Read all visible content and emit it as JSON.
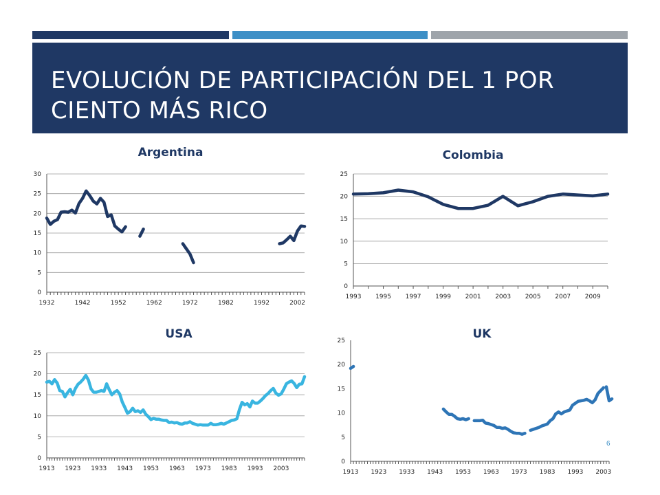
{
  "slide": {
    "title": "EVOLUCIÓN DE PARTICIPACIÓN DEL 1 POR CIENTO MÁS RICO",
    "page_number": "6",
    "colors": {
      "title_bg": "#1f3864",
      "bar1": "#1f3864",
      "bar2": "#3d8fc6",
      "bar3": "#9ea4aa"
    }
  },
  "chart_data": [
    {
      "id": "argentina",
      "type": "line",
      "title": "Argentina",
      "color": "#1f3864",
      "xlim": [
        1932,
        2004
      ],
      "ylim": [
        0,
        30
      ],
      "yticks": [
        0,
        5,
        10,
        15,
        20,
        25,
        30
      ],
      "xtick_labels": [
        "1932",
        "1942",
        "1952",
        "1962",
        "1972",
        "1982",
        "1992",
        "2002"
      ],
      "xtick_values": [
        1932,
        1942,
        1952,
        1962,
        1972,
        1982,
        1992,
        2002
      ],
      "grid": true,
      "segments": [
        [
          [
            1932,
            18.8
          ],
          [
            1933,
            17.2
          ],
          [
            1934,
            18
          ],
          [
            1935,
            18.4
          ],
          [
            1936,
            20.3
          ],
          [
            1937,
            20.4
          ],
          [
            1938,
            20.3
          ],
          [
            1939,
            20.8
          ],
          [
            1940,
            20.1
          ],
          [
            1941,
            22.5
          ],
          [
            1942,
            23.8
          ],
          [
            1943,
            25.7
          ],
          [
            1944,
            24.5
          ],
          [
            1945,
            23.1
          ],
          [
            1946,
            22.4
          ],
          [
            1947,
            23.8
          ],
          [
            1948,
            22.8
          ],
          [
            1949,
            19.2
          ],
          [
            1950,
            19.6
          ],
          [
            1951,
            16.8
          ],
          [
            1952,
            16
          ],
          [
            1953,
            15.3
          ],
          [
            1954,
            16.6
          ]
        ],
        [
          [
            1958,
            14.2
          ],
          [
            1959,
            16
          ]
        ],
        [
          [
            1970,
            12.3
          ],
          [
            1971,
            11
          ],
          [
            1972,
            9.7
          ],
          [
            1973,
            7.5
          ]
        ],
        [
          [
            1997,
            12.3
          ],
          [
            1998,
            12.5
          ],
          [
            1999,
            13.3
          ],
          [
            2000,
            14.2
          ],
          [
            2001,
            13.1
          ],
          [
            2002,
            15.5
          ],
          [
            2003,
            16.8
          ],
          [
            2004,
            16.7
          ]
        ]
      ]
    },
    {
      "id": "colombia",
      "type": "line",
      "title": "Colombia",
      "color": "#1f3864",
      "xlim": [
        1993,
        2010
      ],
      "ylim": [
        0,
        25
      ],
      "yticks": [
        0,
        5,
        10,
        15,
        20,
        25
      ],
      "xtick_labels": [
        "1993",
        "1995",
        "1997",
        "1999",
        "2001",
        "2003",
        "2005",
        "2007",
        "2009"
      ],
      "xtick_values": [
        1993,
        1995,
        1997,
        1999,
        2001,
        2003,
        2005,
        2007,
        2009
      ],
      "grid": true,
      "segments": [
        [
          [
            1993,
            20.5
          ],
          [
            1994,
            20.6
          ],
          [
            1995,
            20.8
          ],
          [
            1996,
            21.4
          ],
          [
            1997,
            21
          ],
          [
            1998,
            19.9
          ],
          [
            1999,
            18.2
          ],
          [
            2000,
            17.3
          ],
          [
            2001,
            17.3
          ],
          [
            2002,
            18
          ],
          [
            2003,
            20
          ],
          [
            2004,
            17.9
          ],
          [
            2005,
            18.8
          ],
          [
            2006,
            20
          ],
          [
            2007,
            20.5
          ],
          [
            2008,
            20.3
          ],
          [
            2009,
            20.1
          ],
          [
            2010,
            20.5
          ]
        ]
      ]
    },
    {
      "id": "usa",
      "type": "line",
      "title": "USA",
      "color": "#39b5e0",
      "xlim": [
        1913,
        2012
      ],
      "ylim": [
        0,
        25
      ],
      "yticks": [
        0,
        5,
        10,
        15,
        20,
        25
      ],
      "xtick_labels": [
        "1913",
        "1923",
        "1933",
        "1943",
        "1953",
        "1963",
        "1973",
        "1983",
        "1993",
        "2003"
      ],
      "xtick_values": [
        1913,
        1923,
        1933,
        1943,
        1953,
        1963,
        1973,
        1983,
        1993,
        2003
      ],
      "grid": true,
      "segments": [
        [
          [
            1913,
            18
          ],
          [
            1914,
            18.2
          ],
          [
            1915,
            17.6
          ],
          [
            1916,
            18.6
          ],
          [
            1917,
            17.8
          ],
          [
            1918,
            16
          ],
          [
            1919,
            15.8
          ],
          [
            1920,
            14.5
          ],
          [
            1921,
            15.5
          ],
          [
            1922,
            16.3
          ],
          [
            1923,
            15
          ],
          [
            1924,
            16.5
          ],
          [
            1925,
            17.5
          ],
          [
            1926,
            18
          ],
          [
            1927,
            18.7
          ],
          [
            1928,
            19.6
          ],
          [
            1929,
            18.5
          ],
          [
            1930,
            16.4
          ],
          [
            1931,
            15.6
          ],
          [
            1932,
            15.6
          ],
          [
            1933,
            15.8
          ],
          [
            1934,
            16
          ],
          [
            1935,
            15.8
          ],
          [
            1936,
            17.6
          ],
          [
            1937,
            16.2
          ],
          [
            1938,
            15
          ],
          [
            1939,
            15.6
          ],
          [
            1940,
            16
          ],
          [
            1941,
            15.2
          ],
          [
            1942,
            13.3
          ],
          [
            1943,
            12
          ],
          [
            1944,
            10.6
          ],
          [
            1945,
            11
          ],
          [
            1946,
            11.8
          ],
          [
            1947,
            11
          ],
          [
            1948,
            11.2
          ],
          [
            1949,
            10.8
          ],
          [
            1950,
            11.4
          ],
          [
            1951,
            10.4
          ],
          [
            1952,
            9.8
          ],
          [
            1953,
            9.1
          ],
          [
            1954,
            9.4
          ],
          [
            1955,
            9.2
          ],
          [
            1956,
            9.2
          ],
          [
            1957,
            9
          ],
          [
            1958,
            8.9
          ],
          [
            1959,
            8.9
          ],
          [
            1960,
            8.4
          ],
          [
            1961,
            8.5
          ],
          [
            1962,
            8.3
          ],
          [
            1963,
            8.4
          ],
          [
            1964,
            8.1
          ],
          [
            1965,
            8.0
          ],
          [
            1966,
            8.3
          ],
          [
            1967,
            8.3
          ],
          [
            1968,
            8.6
          ],
          [
            1969,
            8.2
          ],
          [
            1970,
            8
          ],
          [
            1971,
            7.8
          ],
          [
            1972,
            7.9
          ],
          [
            1973,
            7.8
          ],
          [
            1974,
            7.8
          ],
          [
            1975,
            7.8
          ],
          [
            1976,
            8.2
          ],
          [
            1977,
            7.9
          ],
          [
            1978,
            7.9
          ],
          [
            1979,
            8
          ],
          [
            1980,
            8.2
          ],
          [
            1981,
            8
          ],
          [
            1982,
            8.3
          ],
          [
            1983,
            8.6
          ],
          [
            1984,
            8.9
          ],
          [
            1985,
            9
          ],
          [
            1986,
            9.3
          ],
          [
            1987,
            11.5
          ],
          [
            1988,
            13.2
          ],
          [
            1989,
            12.6
          ],
          [
            1990,
            12.9
          ],
          [
            1991,
            12.1
          ],
          [
            1992,
            13.5
          ],
          [
            1993,
            13
          ],
          [
            1994,
            13
          ],
          [
            1995,
            13.5
          ],
          [
            1996,
            14.1
          ],
          [
            1997,
            14.8
          ],
          [
            1998,
            15.3
          ],
          [
            1999,
            16
          ],
          [
            2000,
            16.5
          ],
          [
            2001,
            15.4
          ],
          [
            2002,
            14.9
          ],
          [
            2003,
            15.2
          ],
          [
            2004,
            16.3
          ],
          [
            2005,
            17.6
          ],
          [
            2006,
            18
          ],
          [
            2007,
            18.3
          ],
          [
            2008,
            17.7
          ],
          [
            2009,
            16.7
          ],
          [
            2010,
            17.5
          ],
          [
            2011,
            17.6
          ],
          [
            2012,
            19.3
          ]
        ]
      ]
    },
    {
      "id": "uk",
      "type": "line",
      "title": "UK",
      "color": "#2e75b6",
      "xlim": [
        1913,
        2005
      ],
      "ylim": [
        0,
        25
      ],
      "yticks": [
        0,
        5,
        10,
        15,
        20,
        25
      ],
      "xtick_labels": [
        "1913",
        "1923",
        "1933",
        "1943",
        "1953",
        "1963",
        "1973",
        "1983",
        "1993",
        "2003"
      ],
      "xtick_values": [
        1913,
        1923,
        1933,
        1943,
        1953,
        1963,
        1973,
        1983,
        1993,
        2003
      ],
      "grid": false,
      "segments": [
        [
          [
            1913,
            19.2
          ],
          [
            1914,
            19.6
          ]
        ],
        [
          [
            1946,
            10.8
          ],
          [
            1947,
            10.2
          ],
          [
            1948,
            9.7
          ],
          [
            1949,
            9.7
          ],
          [
            1950,
            9.3
          ],
          [
            1951,
            8.8
          ],
          [
            1952,
            8.7
          ],
          [
            1953,
            8.8
          ],
          [
            1954,
            8.6
          ],
          [
            1955,
            8.8
          ]
        ],
        [
          [
            1957,
            8.4
          ],
          [
            1958,
            8.4
          ],
          [
            1959,
            8.4
          ],
          [
            1960,
            8.5
          ],
          [
            1961,
            7.9
          ],
          [
            1962,
            7.8
          ],
          [
            1963,
            7.6
          ],
          [
            1964,
            7.4
          ],
          [
            1965,
            7.0
          ],
          [
            1966,
            7.0
          ],
          [
            1967,
            6.8
          ],
          [
            1968,
            6.9
          ],
          [
            1969,
            6.6
          ],
          [
            1970,
            6.2
          ],
          [
            1971,
            5.9
          ],
          [
            1972,
            5.8
          ],
          [
            1973,
            5.8
          ],
          [
            1974,
            5.6
          ],
          [
            1975,
            5.8
          ]
        ],
        [
          [
            1977,
            6.4
          ],
          [
            1978,
            6.6
          ],
          [
            1979,
            6.8
          ],
          [
            1980,
            7.0
          ],
          [
            1981,
            7.3
          ],
          [
            1982,
            7.5
          ],
          [
            1983,
            7.7
          ],
          [
            1984,
            8.4
          ],
          [
            1985,
            8.8
          ],
          [
            1986,
            9.8
          ],
          [
            1987,
            10.2
          ],
          [
            1988,
            9.8
          ],
          [
            1989,
            10.2
          ],
          [
            1990,
            10.4
          ],
          [
            1991,
            10.6
          ],
          [
            1992,
            11.6
          ],
          [
            1993,
            12
          ],
          [
            1994,
            12.4
          ],
          [
            1995,
            12.5
          ],
          [
            1996,
            12.6
          ],
          [
            1997,
            12.8
          ],
          [
            1998,
            12.5
          ],
          [
            1999,
            12.1
          ],
          [
            2000,
            12.7
          ],
          [
            2001,
            14
          ],
          [
            2002,
            14.6
          ],
          [
            2003,
            15.2
          ]
        ],
        [
          [
            2004,
            15.4
          ],
          [
            2005,
            12.5
          ],
          [
            2006,
            12.9
          ]
        ]
      ]
    }
  ]
}
